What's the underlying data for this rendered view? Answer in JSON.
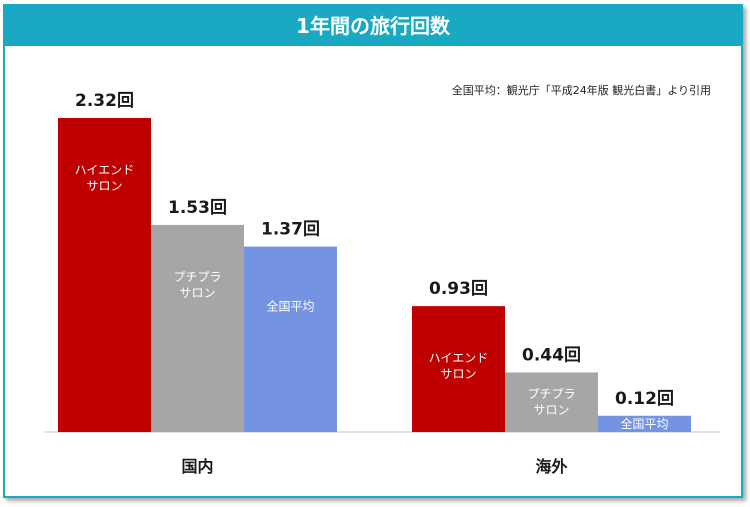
{
  "title": "1年間の旅行回数",
  "source_note": "全国平均：観光庁「平成24年版 観光白書」より引用",
  "colors": {
    "header": "#19a9c3",
    "highend": "#c00000",
    "petit": "#a6a6a6",
    "national": "#7493e3"
  },
  "chart_data": {
    "type": "bar",
    "title": "1年間の旅行回数",
    "categories": [
      "国内",
      "海外"
    ],
    "series": [
      {
        "name": "ハイエンドサロン",
        "label_lines": [
          "ハイエンド",
          "サロン"
        ],
        "color": "#c00000",
        "values": [
          2.32,
          0.93
        ],
        "value_labels": [
          "2.32回",
          "0.93回"
        ]
      },
      {
        "name": "プチプラサロン",
        "label_lines": [
          "プチプラ",
          "サロン"
        ],
        "color": "#a6a6a6",
        "values": [
          1.53,
          0.44
        ],
        "value_labels": [
          "1.53回",
          "0.44回"
        ]
      },
      {
        "name": "全国平均",
        "label_lines": [
          "全国平均"
        ],
        "color": "#7493e3",
        "values": [
          1.37,
          0.12
        ],
        "value_labels": [
          "1.37回",
          "0.12回"
        ]
      }
    ],
    "ylim": [
      0,
      2.32
    ],
    "grid": false,
    "legend": "none (labels inside bars)"
  }
}
